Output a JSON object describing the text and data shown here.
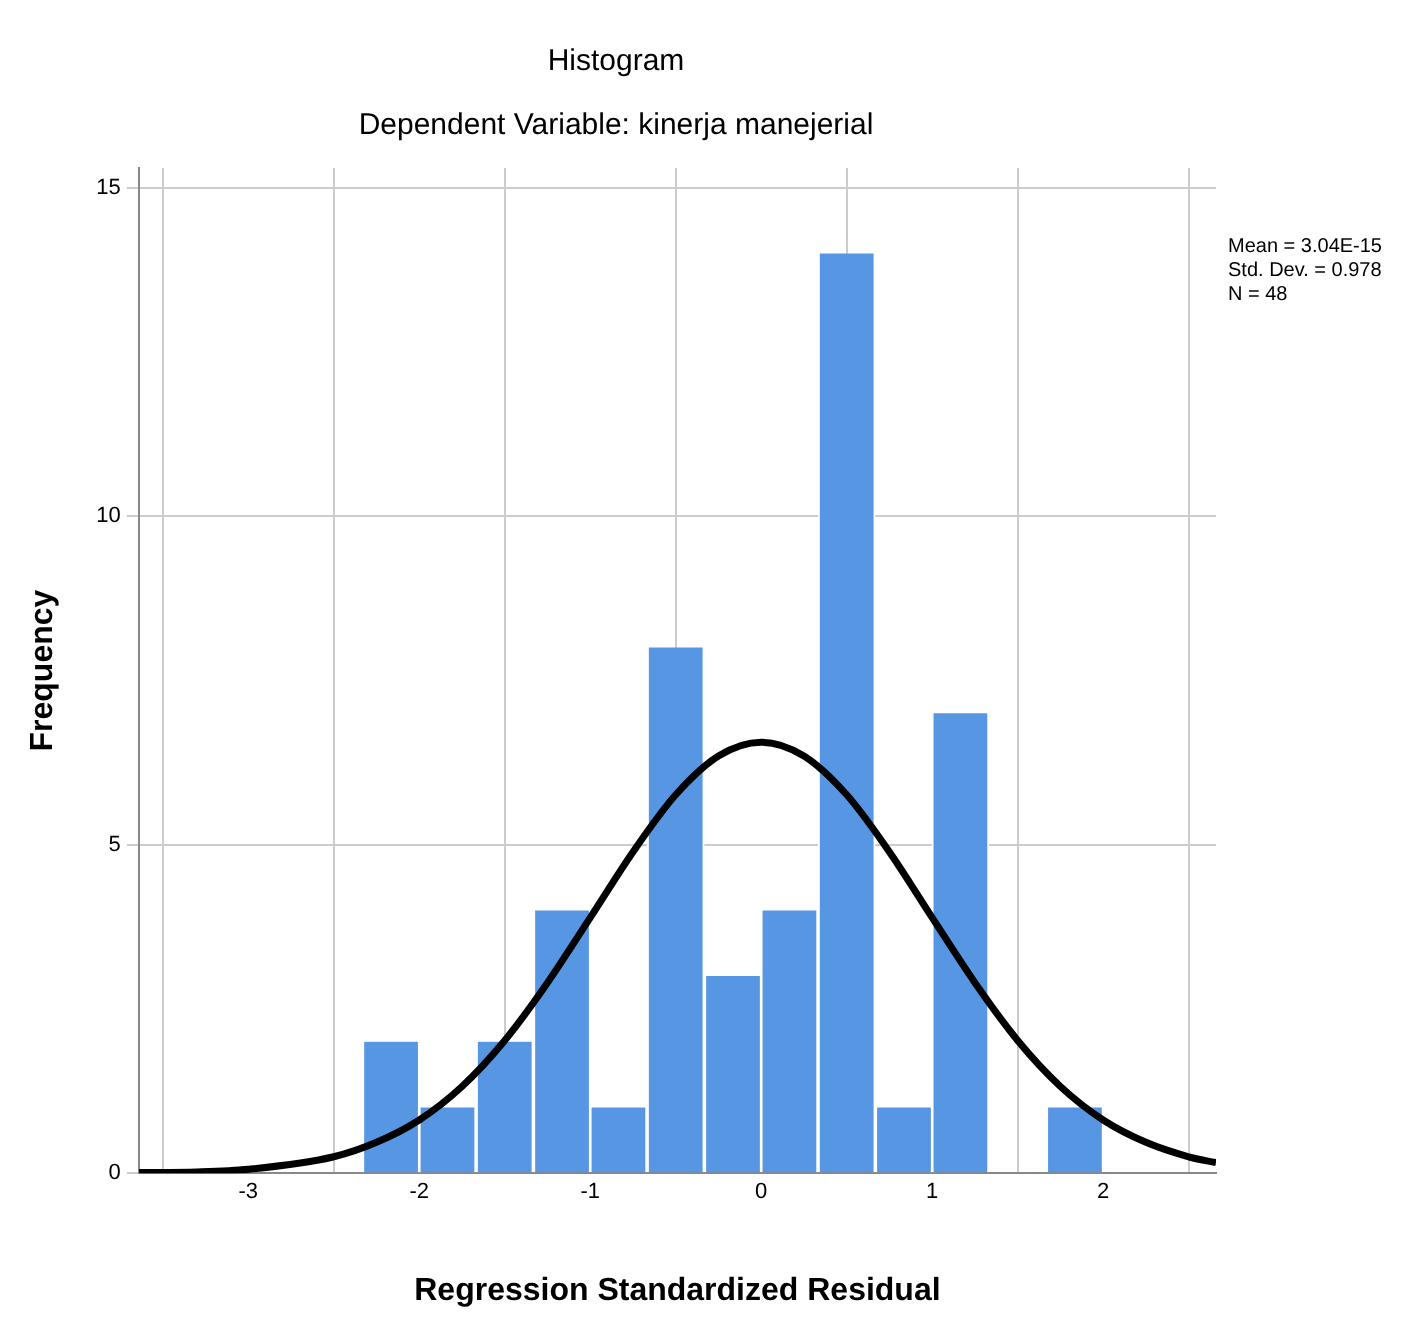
{
  "chart_data": {
    "type": "histogram",
    "title": "Histogram",
    "subtitle": "Dependent Variable: kinerja manejerial",
    "xlabel": "Regression Standardized Residual",
    "ylabel": "Frequency",
    "annotations": [
      "Mean = 3.04E-15",
      "Std. Dev. = 0.978",
      "N = 48"
    ],
    "xlim": [
      -3.64,
      2.66
    ],
    "xticks": [
      -3,
      -2,
      -1,
      0,
      1,
      2
    ],
    "ylim": [
      0,
      15.3
    ],
    "yticks": [
      0,
      5,
      10,
      15
    ],
    "grid": true,
    "series": [
      {
        "type": "histogram",
        "color": "#5696e3",
        "bins": [
          -2.33,
          -2.0,
          -1.67,
          -1.33,
          -1.0,
          -0.67,
          -0.33,
          0.0,
          0.33,
          0.67,
          1.0,
          1.33,
          1.67,
          2.0
        ],
        "values": [
          2,
          1,
          2,
          4,
          1,
          8,
          3,
          4,
          14,
          1,
          7,
          0,
          1
        ]
      },
      {
        "type": "line",
        "color": "#000000",
        "x": [
          -3.64,
          -3.3,
          -3.0,
          -2.5,
          -2.25,
          -2.0,
          -1.75,
          -1.5,
          -1.25,
          -1.0,
          -0.75,
          -0.5,
          -0.25,
          0,
          0.25,
          0.5,
          0.75,
          1.0,
          1.25,
          1.5,
          1.75,
          2.0,
          2.25,
          2.5,
          2.66
        ],
        "values": [
          0.01,
          0.02,
          0.06,
          0.25,
          0.47,
          0.81,
          1.32,
          2.02,
          2.9,
          3.89,
          4.89,
          5.76,
          6.35,
          6.56,
          6.35,
          5.76,
          4.89,
          3.89,
          2.9,
          2.02,
          1.32,
          0.81,
          0.47,
          0.25,
          0.16
        ]
      }
    ]
  }
}
